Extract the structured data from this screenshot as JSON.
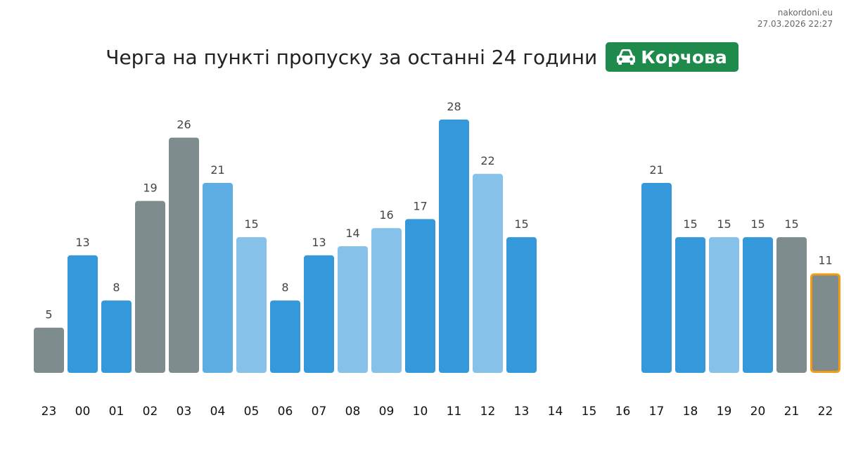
{
  "header": {
    "site": "nakordoni.eu",
    "timestamp": "27.03.2026 22:27",
    "title": "Черга на пункті пропуску за останні 24 години",
    "badge_label": "Корчова",
    "badge_icon": "car-icon",
    "badge_color": "#1e8a4c"
  },
  "chart_data": {
    "type": "bar",
    "title": "Черга на пункті пропуску за останні 24 години",
    "xlabel": "",
    "ylabel": "",
    "ylim": [
      0,
      28
    ],
    "grid": false,
    "legend": "none",
    "categories": [
      "23",
      "00",
      "01",
      "02",
      "03",
      "04",
      "05",
      "06",
      "07",
      "08",
      "09",
      "10",
      "11",
      "12",
      "13",
      "14",
      "15",
      "16",
      "17",
      "18",
      "19",
      "20",
      "21",
      "22"
    ],
    "values": [
      5,
      13,
      8,
      19,
      26,
      21,
      15,
      8,
      13,
      14,
      16,
      17,
      28,
      22,
      15,
      null,
      null,
      null,
      21,
      15,
      15,
      15,
      15,
      11
    ],
    "bar_colors": [
      "#7f8c8d",
      "#3498db",
      "#3498db",
      "#7f8c8d",
      "#7f8c8d",
      "#5dade2",
      "#85c1e9",
      "#3498db",
      "#3498db",
      "#85c1e9",
      "#85c1e9",
      "#3498db",
      "#3498db",
      "#85c1e9",
      "#3498db",
      "",
      "",
      "",
      "#3498db",
      "#3498db",
      "#85c1e9",
      "#3498db",
      "#7f8c8d",
      "#7f8c8d"
    ],
    "highlighted_category": "22",
    "highlight_color": "#f39c12"
  }
}
